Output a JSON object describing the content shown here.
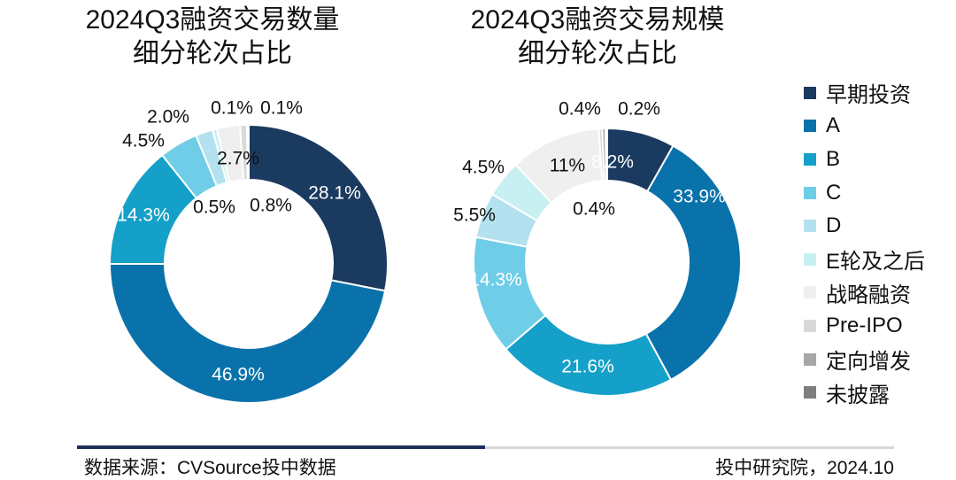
{
  "chart_data": [
    {
      "type": "pie",
      "title_lines": [
        "2024Q3融资交易数量",
        "细分轮次占比"
      ],
      "categories": [
        "早期投资",
        "A",
        "B",
        "C",
        "D",
        "E轮及之后",
        "战略融资",
        "Pre-IPO",
        "定向增发",
        "未披露"
      ],
      "values": [
        28.1,
        46.9,
        14.3,
        4.5,
        2.0,
        0.5,
        2.7,
        0.8,
        0.1,
        0.1
      ],
      "labels": [
        "28.1%",
        "46.9%",
        "14.3%",
        "4.5%",
        "2.0%",
        "0.5%",
        "2.7%",
        "0.8%",
        "0.1%",
        "0.1%"
      ],
      "donut": true
    },
    {
      "type": "pie",
      "title_lines": [
        "2024Q3融资交易规模",
        "细分轮次占比"
      ],
      "categories": [
        "早期投资",
        "A",
        "B",
        "C",
        "D",
        "E轮及之后",
        "战略融资",
        "Pre-IPO",
        "定向增发",
        "未披露"
      ],
      "values": [
        8.2,
        33.9,
        21.6,
        14.3,
        5.5,
        4.5,
        11,
        0.4,
        0.4,
        0.2
      ],
      "labels": [
        "8.2%",
        "33.9%",
        "21.6%",
        "14.3%",
        "5.5%",
        "4.5%",
        "11%",
        "0.4%",
        "0.4%",
        "0.2%"
      ],
      "donut": true
    }
  ],
  "legend": {
    "items": [
      "早期投资",
      "A",
      "B",
      "C",
      "D",
      "E轮及之后",
      "战略融资",
      "Pre-IPO",
      "定向增发",
      "未披露"
    ],
    "colors": [
      "#1b3a5f",
      "#0a72aa",
      "#14a0c8",
      "#6fcde8",
      "#b3e1ef",
      "#c8f0f3",
      "#efefef",
      "#d9d9d9",
      "#a6a6a6",
      "#7f7f7f"
    ]
  },
  "footer": {
    "source": "数据来源：CVSource投中数据",
    "credit": "投中研究院，2024.10"
  }
}
